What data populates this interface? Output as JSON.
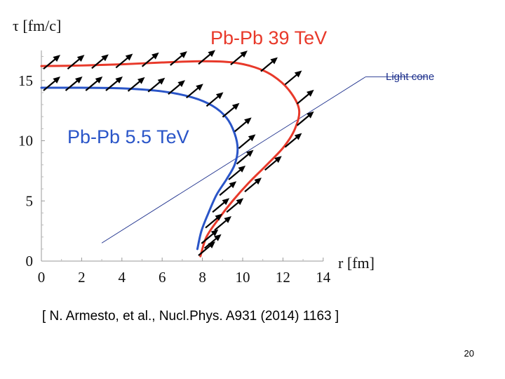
{
  "chart_data": {
    "type": "line",
    "title": "",
    "xlabel": "r [fm]",
    "ylabel": "τ [fm/c]",
    "xlim": [
      0,
      14
    ],
    "ylim": [
      0,
      17.5
    ],
    "x_ticks": [
      0,
      2,
      4,
      6,
      8,
      10,
      12,
      14
    ],
    "y_ticks": [
      0,
      5,
      10,
      15
    ],
    "series": [
      {
        "name": "Pb-Pb 39 TeV",
        "color": "#e8392a",
        "points": [
          [
            0,
            16.2
          ],
          [
            2,
            16.25
          ],
          [
            4,
            16.35
          ],
          [
            6,
            16.5
          ],
          [
            8,
            16.6
          ],
          [
            9.5,
            16.5
          ],
          [
            10.6,
            16.1
          ],
          [
            11.5,
            15.4
          ],
          [
            12.3,
            14.2
          ],
          [
            12.8,
            12.6
          ],
          [
            12.6,
            11
          ],
          [
            12.05,
            9.5
          ],
          [
            11.2,
            8
          ],
          [
            10.3,
            6.5
          ],
          [
            9.5,
            5
          ],
          [
            8.8,
            3.5
          ],
          [
            8.2,
            2
          ],
          [
            7.9,
            0.4
          ]
        ]
      },
      {
        "name": "Pb-Pb 5.5 TeV",
        "color": "#2a55c8",
        "points": [
          [
            0,
            14.4
          ],
          [
            2,
            14.4
          ],
          [
            4,
            14.35
          ],
          [
            6,
            14.1
          ],
          [
            7.5,
            13.6
          ],
          [
            8.5,
            12.9
          ],
          [
            9.2,
            11.9
          ],
          [
            9.6,
            10.6
          ],
          [
            9.75,
            9.3
          ],
          [
            9.6,
            8
          ],
          [
            9.2,
            6.8
          ],
          [
            8.7,
            5.5
          ],
          [
            8.3,
            4
          ],
          [
            7.95,
            2.5
          ],
          [
            7.75,
            1
          ]
        ]
      }
    ],
    "arrows": {
      "color": "#000000",
      "points": [
        [
          0,
          16.2
        ],
        [
          1.2,
          16.2
        ],
        [
          2.4,
          16.25
        ],
        [
          3.6,
          16.3
        ],
        [
          4.9,
          16.4
        ],
        [
          6.3,
          16.5
        ],
        [
          7.7,
          16.6
        ],
        [
          9.3,
          16.55
        ],
        [
          10.8,
          16
        ],
        [
          12,
          14.9
        ],
        [
          12.6,
          13.3
        ],
        [
          12.6,
          11.5
        ],
        [
          12,
          9.7
        ],
        [
          11,
          7.8
        ],
        [
          10,
          6
        ],
        [
          9.1,
          4.3
        ],
        [
          8.5,
          2.8
        ],
        [
          8,
          1.3
        ],
        [
          0,
          14.4
        ],
        [
          1.1,
          14.4
        ],
        [
          2.1,
          14.4
        ],
        [
          3.1,
          14.4
        ],
        [
          4.2,
          14.35
        ],
        [
          5.2,
          14.3
        ],
        [
          6.2,
          14.1
        ],
        [
          7.1,
          13.8
        ],
        [
          8.1,
          13.1
        ],
        [
          8.9,
          12.2
        ],
        [
          9.5,
          11
        ],
        [
          9.7,
          9.6
        ],
        [
          9.6,
          8.3
        ],
        [
          9.2,
          7
        ],
        [
          8.75,
          5.7
        ],
        [
          8.4,
          4.3
        ],
        [
          8.05,
          3
        ],
        [
          7.85,
          1.7
        ],
        [
          7.7,
          0.7
        ]
      ]
    },
    "annotations": [
      {
        "text": "Light cone",
        "line_from": [
          3,
          1.5
        ],
        "line_to": [
          16.1,
          15.3
        ],
        "color": "#1c2f8c"
      }
    ]
  },
  "citation": "[ N. Armesto, et al., Nucl.Phys. A931 (2014) 1163 ]",
  "slide_number": "20"
}
